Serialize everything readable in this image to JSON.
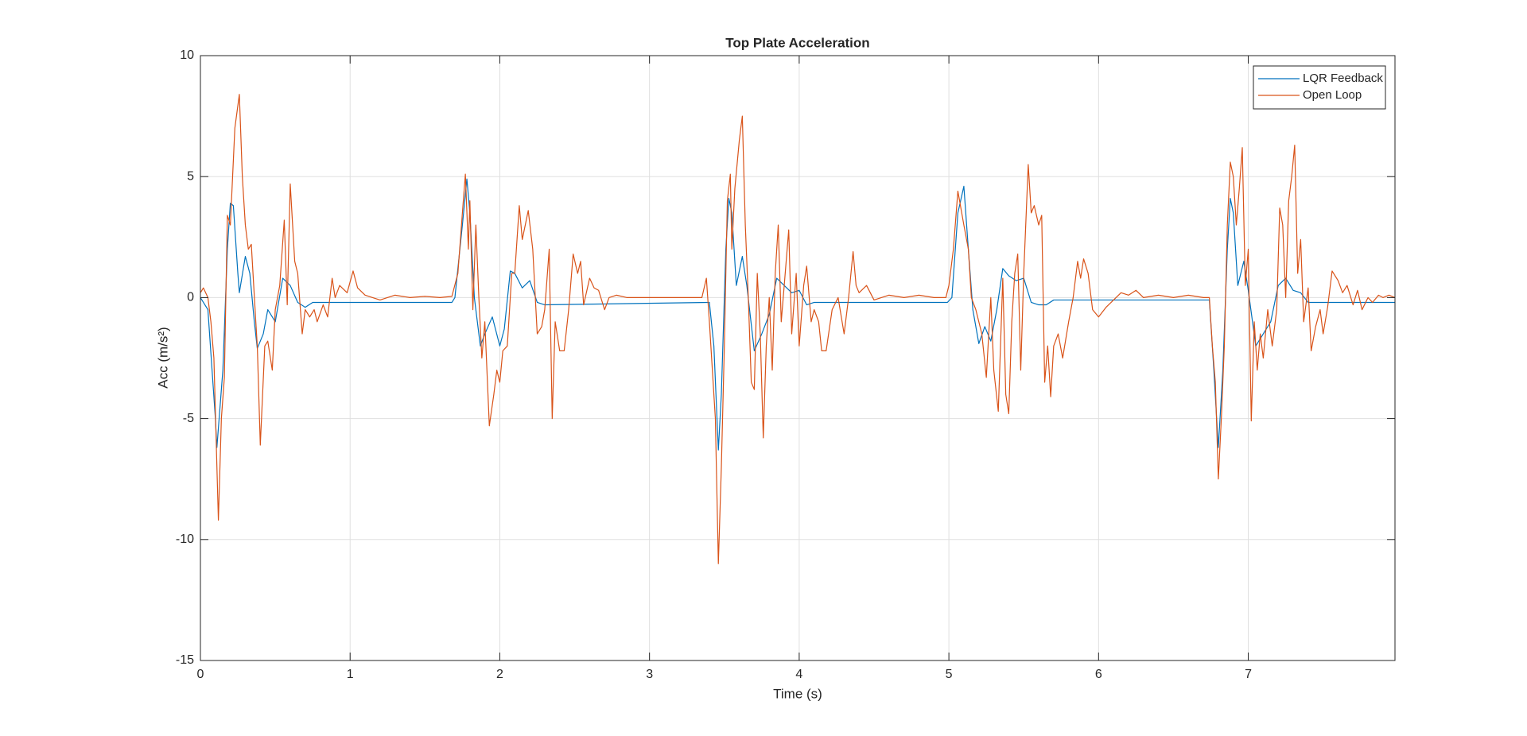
{
  "chart_data": {
    "type": "line",
    "title": "Top Plate Acceleration",
    "xlabel": "Time (s)",
    "ylabel": "Acc (m/s²)",
    "xlim": [
      0,
      7.98
    ],
    "xticks": [
      0,
      1,
      2,
      3,
      4,
      5,
      6,
      7
    ],
    "ylim": [
      -15,
      10
    ],
    "yticks": [
      -15,
      -10,
      -5,
      0,
      5,
      10
    ],
    "grid": true,
    "legend": "northeast",
    "series": [
      {
        "name": "LQR Feedback",
        "color": "#0072bd",
        "x": [
          0,
          0.05,
          0.1,
          0.11,
          0.15,
          0.18,
          0.2,
          0.22,
          0.25,
          0.26,
          0.3,
          0.33,
          0.36,
          0.38,
          0.42,
          0.45,
          0.5,
          0.55,
          0.6,
          0.65,
          0.7,
          0.75,
          1.68,
          1.7,
          1.75,
          1.78,
          1.8,
          1.83,
          1.87,
          1.9,
          1.95,
          2.0,
          2.03,
          2.07,
          2.1,
          2.15,
          2.2,
          2.25,
          2.3,
          3.4,
          3.43,
          3.46,
          3.48,
          3.51,
          3.53,
          3.55,
          3.58,
          3.62,
          3.65,
          3.7,
          3.75,
          3.8,
          3.85,
          3.9,
          3.95,
          4.0,
          4.05,
          4.1,
          4.99,
          5.02,
          5.06,
          5.1,
          5.13,
          5.16,
          5.2,
          5.24,
          5.28,
          5.32,
          5.36,
          5.4,
          5.45,
          5.5,
          5.55,
          5.6,
          5.65,
          5.7,
          6.74,
          6.77,
          6.8,
          6.83,
          6.86,
          6.88,
          6.9,
          6.93,
          6.97,
          7.0,
          7.05,
          7.1,
          7.15,
          7.2,
          7.25,
          7.3,
          7.35,
          7.4,
          7.98
        ],
        "values": [
          0,
          -0.5,
          -5,
          -6.2,
          -3,
          2,
          3.9,
          3.8,
          1,
          0.2,
          1.7,
          1,
          -1,
          -2.1,
          -1.5,
          -0.5,
          -1,
          0.8,
          0.5,
          -0.2,
          -0.4,
          -0.2,
          -0.2,
          0,
          3,
          4.9,
          3.5,
          0,
          -2,
          -1.5,
          -0.8,
          -2,
          -1.3,
          1.1,
          1,
          0.4,
          0.7,
          -0.2,
          -0.3,
          -0.2,
          -2,
          -6.3,
          -4,
          2,
          4.1,
          3.5,
          0.5,
          1.7,
          0.5,
          -2.2,
          -1.5,
          -0.7,
          0.8,
          0.5,
          0.2,
          0.3,
          -0.3,
          -0.2,
          -0.2,
          0,
          3.5,
          4.6,
          2,
          -0.5,
          -1.9,
          -1.2,
          -1.8,
          -0.5,
          1.2,
          0.9,
          0.7,
          0.8,
          -0.2,
          -0.3,
          -0.3,
          -0.1,
          -0.1,
          -3,
          -6.2,
          -3,
          2,
          4.1,
          3.5,
          0.5,
          1.5,
          0.3,
          -2,
          -1.5,
          -1,
          0.5,
          0.8,
          0.3,
          0.2,
          -0.2,
          -0.2
        ]
      },
      {
        "name": "Open Loop",
        "color": "#d95319",
        "x": [
          0,
          0.02,
          0.05,
          0.07,
          0.09,
          0.12,
          0.14,
          0.16,
          0.18,
          0.2,
          0.23,
          0.26,
          0.28,
          0.3,
          0.32,
          0.34,
          0.37,
          0.38,
          0.4,
          0.43,
          0.45,
          0.48,
          0.5,
          0.53,
          0.56,
          0.58,
          0.6,
          0.63,
          0.65,
          0.68,
          0.7,
          0.73,
          0.76,
          0.78,
          0.82,
          0.85,
          0.88,
          0.9,
          0.93,
          0.98,
          1.02,
          1.05,
          1.1,
          1.15,
          1.2,
          1.3,
          1.4,
          1.5,
          1.6,
          1.68,
          1.72,
          1.75,
          1.77,
          1.79,
          1.8,
          1.82,
          1.84,
          1.86,
          1.88,
          1.9,
          1.93,
          1.96,
          1.98,
          2.0,
          2.02,
          2.05,
          2.08,
          2.1,
          2.13,
          2.15,
          2.17,
          2.19,
          2.22,
          2.25,
          2.28,
          2.3,
          2.33,
          2.35,
          2.37,
          2.4,
          2.43,
          2.46,
          2.49,
          2.52,
          2.54,
          2.56,
          2.6,
          2.63,
          2.66,
          2.7,
          2.73,
          2.78,
          2.85,
          3.0,
          3.2,
          3.35,
          3.38,
          3.4,
          3.42,
          3.44,
          3.45,
          3.46,
          3.48,
          3.5,
          3.52,
          3.54,
          3.55,
          3.57,
          3.6,
          3.62,
          3.64,
          3.66,
          3.68,
          3.7,
          3.72,
          3.74,
          3.76,
          3.78,
          3.8,
          3.82,
          3.84,
          3.86,
          3.88,
          3.9,
          3.93,
          3.95,
          3.98,
          4.0,
          4.03,
          4.05,
          4.08,
          4.1,
          4.13,
          4.15,
          4.18,
          4.22,
          4.26,
          4.3,
          4.33,
          4.36,
          4.38,
          4.4,
          4.45,
          4.5,
          4.6,
          4.7,
          4.8,
          4.9,
          4.98,
          5.0,
          5.03,
          5.06,
          5.1,
          5.13,
          5.15,
          5.18,
          5.2,
          5.22,
          5.25,
          5.28,
          5.3,
          5.33,
          5.36,
          5.38,
          5.4,
          5.42,
          5.44,
          5.46,
          5.48,
          5.5,
          5.53,
          5.55,
          5.57,
          5.6,
          5.62,
          5.64,
          5.66,
          5.68,
          5.7,
          5.73,
          5.76,
          5.8,
          5.83,
          5.86,
          5.88,
          5.9,
          5.93,
          5.96,
          6.0,
          6.05,
          6.1,
          6.15,
          6.2,
          6.25,
          6.3,
          6.4,
          6.5,
          6.6,
          6.7,
          6.74,
          6.76,
          6.78,
          6.8,
          6.82,
          6.84,
          6.86,
          6.88,
          6.9,
          6.92,
          6.94,
          6.96,
          6.98,
          7.0,
          7.02,
          7.04,
          7.06,
          7.08,
          7.1,
          7.13,
          7.16,
          7.19,
          7.21,
          7.23,
          7.25,
          7.27,
          7.29,
          7.31,
          7.33,
          7.35,
          7.37,
          7.4,
          7.42,
          7.45,
          7.48,
          7.5,
          7.53,
          7.56,
          7.6,
          7.63,
          7.66,
          7.7,
          7.73,
          7.76,
          7.8,
          7.83,
          7.87,
          7.9,
          7.94,
          7.98
        ],
        "values": [
          0.2,
          0.4,
          0,
          -1,
          -2.5,
          -9.2,
          -5,
          -3.3,
          3.4,
          3,
          7,
          8.4,
          5,
          3,
          2,
          2.2,
          -1,
          -2,
          -6.1,
          -2,
          -1.8,
          -3,
          -0.5,
          0.5,
          3.2,
          -0.3,
          4.7,
          1.5,
          1,
          -1.5,
          -0.5,
          -0.8,
          -0.5,
          -1,
          -0.3,
          -0.8,
          0.8,
          0,
          0.5,
          0.2,
          1.1,
          0.4,
          0.1,
          0,
          -0.1,
          0.1,
          0,
          0.05,
          0,
          0.05,
          1,
          3.5,
          5.1,
          2,
          4,
          -0.5,
          3,
          0,
          -2.5,
          -1,
          -5.3,
          -4,
          -3,
          -3.5,
          -2.2,
          -2,
          1,
          1,
          3.8,
          2.4,
          3,
          3.6,
          2,
          -1.5,
          -1.2,
          -0.5,
          2,
          -5,
          -1,
          -2.2,
          -2.2,
          -0.5,
          1.8,
          1,
          1.5,
          -0.3,
          0.8,
          0.4,
          0.3,
          -0.5,
          0,
          0.1,
          0,
          0,
          0,
          0,
          0.8,
          -1,
          -3,
          -5,
          -8,
          -11,
          -7,
          -2,
          4,
          5.1,
          2,
          4.5,
          6.5,
          7.5,
          3,
          0,
          -3.5,
          -3.8,
          1,
          -1.5,
          -5.8,
          -2,
          0,
          -3,
          1,
          3,
          -1,
          0.5,
          2.8,
          -1.5,
          1,
          -2,
          0.5,
          1.3,
          -1,
          -0.5,
          -1,
          -2.2,
          -2.2,
          -0.5,
          0,
          -1.5,
          0,
          1.9,
          0.5,
          0.2,
          0.5,
          -0.1,
          0.1,
          0,
          0.1,
          0,
          0,
          0.5,
          2,
          4.4,
          3,
          2,
          0,
          -0.5,
          -1,
          -1.5,
          -3.3,
          0,
          -3,
          -4.7,
          0.8,
          -4,
          -4.8,
          -1,
          1,
          1.8,
          -3,
          1,
          5.5,
          3.5,
          3.8,
          3,
          3.4,
          -3.5,
          -2,
          -4.1,
          -2,
          -1.5,
          -2.5,
          -1,
          0,
          1.5,
          0.8,
          1.6,
          1,
          -0.5,
          -0.8,
          -0.4,
          -0.1,
          0.2,
          0.1,
          0.3,
          0,
          0.1,
          0,
          0.1,
          0,
          0,
          -2,
          -3.5,
          -7.5,
          -5,
          -2,
          3,
          5.6,
          5,
          3,
          4.5,
          6.2,
          0.5,
          2,
          -5.1,
          -1,
          -3,
          -1.5,
          -2.5,
          -0.5,
          -2,
          -0.5,
          3.7,
          3,
          0,
          4,
          5,
          6.3,
          1,
          2.4,
          -1,
          0.4,
          -2.2,
          -1.2,
          -0.5,
          -1.5,
          -0.4,
          1.1,
          0.7,
          0.2,
          0.5,
          -0.3,
          0.3,
          -0.5,
          0,
          -0.2,
          0.1,
          0,
          0.1,
          0
        ]
      }
    ]
  }
}
